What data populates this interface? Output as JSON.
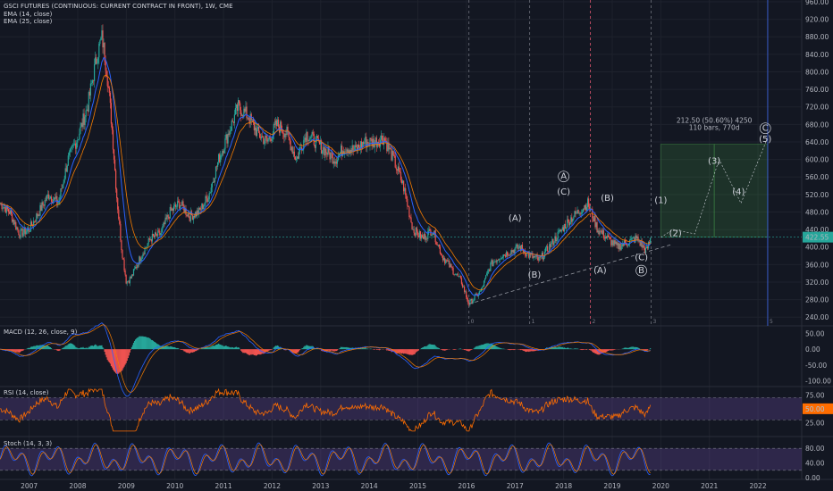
{
  "header": {
    "title": "GSCI FUTURES (CONTINUOUS: CURRENT CONTRACT IN FRONT), 1W, CME",
    "indicators": [
      "EMA (14, close)",
      "EMA (25, close)"
    ]
  },
  "panes": {
    "macd_label": "MACD (12, 26, close, 9)",
    "rsi_label": "RSI (14, close)",
    "stoch_label": "Stoch (14, 3, 3)"
  },
  "price_label": "422.55",
  "measure": {
    "line1": "212.50 (50.60%) 4250",
    "line2": "110 bars, 770d"
  },
  "wave_labels": [
    {
      "text": "(A)",
      "x": 2017.0,
      "y": 460
    },
    {
      "text": "(B)",
      "x": 2017.4,
      "y": 330
    },
    {
      "text": "A",
      "x": 2018.0,
      "y": 555,
      "circled": true
    },
    {
      "text": "(C)",
      "x": 2018.0,
      "y": 520
    },
    {
      "text": "(B)",
      "x": 2018.9,
      "y": 505
    },
    {
      "text": "(A)",
      "x": 2018.75,
      "y": 340
    },
    {
      "text": "(C)",
      "x": 2019.6,
      "y": 370
    },
    {
      "text": "B",
      "x": 2019.6,
      "y": 340,
      "circled": true
    },
    {
      "text": "(1)",
      "x": 2020.0,
      "y": 500
    },
    {
      "text": "(2)",
      "x": 2020.3,
      "y": 425
    },
    {
      "text": "(3)",
      "x": 2021.1,
      "y": 590
    },
    {
      "text": "(4)",
      "x": 2021.6,
      "y": 520
    },
    {
      "text": "C",
      "x": 2022.15,
      "y": 665,
      "circled": true
    },
    {
      "text": "(5)",
      "x": 2022.15,
      "y": 640
    }
  ],
  "fib_markers": [
    {
      "text": "0",
      "x": 2016.05
    },
    {
      "text": "1",
      "x": 2017.3
    },
    {
      "text": "2",
      "x": 2018.55
    },
    {
      "text": "3",
      "x": 2019.8
    },
    {
      "text": "5",
      "x": 2022.2
    }
  ],
  "chart_data": {
    "type": "candlestick",
    "title": "GSCI FUTURES (CONTINUOUS: CURRENT CONTRACT IN FRONT), 1W, CME",
    "x_ticks": [
      "2007",
      "2008",
      "2009",
      "2010",
      "2011",
      "2012",
      "2013",
      "2014",
      "2015",
      "2016",
      "2017",
      "2018",
      "2019",
      "2020",
      "2021",
      "2022"
    ],
    "y_ticks": [
      "960.00",
      "920.00",
      "880.00",
      "840.00",
      "800.00",
      "760.00",
      "720.00",
      "680.00",
      "640.00",
      "600.00",
      "560.00",
      "520.00",
      "480.00",
      "440.00",
      "400.00",
      "360.00",
      "320.00",
      "280.00",
      "240.00"
    ],
    "ylim": [
      220,
      960
    ],
    "xlim": [
      2006.4,
      2022.9
    ],
    "price_series": {
      "x": [
        2006.4,
        2006.6,
        2006.8,
        2007.0,
        2007.2,
        2007.4,
        2007.6,
        2007.8,
        2008.0,
        2008.2,
        2008.4,
        2008.5,
        2008.6,
        2008.7,
        2008.8,
        2008.9,
        2009.0,
        2009.1,
        2009.3,
        2009.5,
        2009.7,
        2009.9,
        2010.1,
        2010.3,
        2010.5,
        2010.7,
        2010.9,
        2011.1,
        2011.3,
        2011.5,
        2011.7,
        2011.9,
        2012.1,
        2012.3,
        2012.5,
        2012.7,
        2012.9,
        2013.1,
        2013.3,
        2013.5,
        2013.7,
        2013.9,
        2014.1,
        2014.3,
        2014.5,
        2014.7,
        2014.9,
        2015.1,
        2015.3,
        2015.5,
        2015.7,
        2015.9,
        2016.05,
        2016.3,
        2016.5,
        2016.7,
        2016.9,
        2017.1,
        2017.3,
        2017.5,
        2017.7,
        2017.9,
        2018.1,
        2018.3,
        2018.5,
        2018.7,
        2018.9,
        2019.1,
        2019.3,
        2019.5,
        2019.7,
        2019.8
      ],
      "close": [
        500,
        480,
        430,
        440,
        480,
        520,
        500,
        600,
        650,
        720,
        840,
        880,
        800,
        680,
        520,
        400,
        320,
        330,
        380,
        420,
        430,
        480,
        500,
        470,
        480,
        520,
        600,
        660,
        720,
        700,
        660,
        640,
        680,
        660,
        600,
        660,
        640,
        620,
        600,
        630,
        620,
        640,
        640,
        650,
        600,
        540,
        440,
        420,
        440,
        380,
        350,
        320,
        270,
        300,
        360,
        380,
        390,
        400,
        380,
        370,
        400,
        430,
        460,
        480,
        500,
        440,
        420,
        400,
        410,
        420,
        390,
        422.55
      ]
    },
    "panes": [
      {
        "name": "MACD (12, 26, close, 9)",
        "y_ticks": [
          "50.00",
          "0.00",
          "-50.00",
          "-100.00"
        ]
      },
      {
        "name": "RSI (14, close)",
        "y_ticks": [
          "75.00",
          "50.00",
          "25.00"
        ],
        "current": 50.0
      },
      {
        "name": "Stoch (14, 3, 3)",
        "y_ticks": [
          "80.00",
          "40.00",
          "0.00"
        ]
      }
    ]
  }
}
